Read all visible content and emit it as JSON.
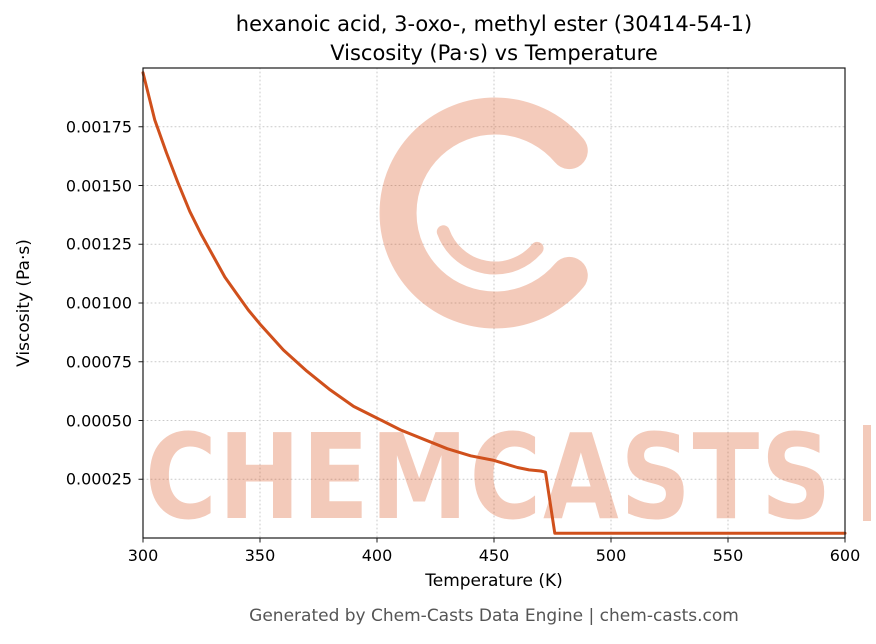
{
  "header": {
    "title_line1": "hexanoic acid, 3-oxo-, methyl ester (30414-54-1)",
    "title_line2": "Viscosity (Pa·s) vs Temperature"
  },
  "axes": {
    "xlabel": "Temperature (K)",
    "ylabel": "Viscosity (Pa·s)"
  },
  "footer": {
    "text": "Generated by Chem-Casts Data Engine | chem-casts.com"
  },
  "watermark": {
    "text": "CHEMCASTS",
    "color": "#d9531e",
    "opacity": 0.3
  },
  "chart_data": {
    "type": "line",
    "title": "hexanoic acid, 3-oxo-, methyl ester (30414-54-1) — Viscosity (Pa·s) vs Temperature",
    "xlabel": "Temperature (K)",
    "ylabel": "Viscosity (Pa·s)",
    "xlim": [
      300,
      600
    ],
    "ylim": [
      0,
      0.002
    ],
    "xticks": [
      300,
      350,
      400,
      450,
      500,
      550,
      600
    ],
    "yticks": [
      0.00025,
      0.0005,
      0.00075,
      0.001,
      0.00125,
      0.0015,
      0.00175
    ],
    "ytick_labels": [
      "0.00025",
      "0.00050",
      "0.00075",
      "0.00100",
      "0.00125",
      "0.00150",
      "0.00175"
    ],
    "grid": true,
    "grid_style": "dotted",
    "legend": "none",
    "line_color": "#d0501c",
    "line_width": 3,
    "series": [
      {
        "name": "viscosity",
        "x": [
          300,
          305,
          310,
          315,
          320,
          325,
          330,
          335,
          340,
          345,
          350,
          360,
          370,
          380,
          390,
          400,
          410,
          420,
          430,
          440,
          450,
          460,
          465,
          470,
          472,
          476,
          480,
          500,
          520,
          550,
          600
        ],
        "y": [
          0.00198,
          0.00178,
          0.00164,
          0.00151,
          0.00139,
          0.00129,
          0.0012,
          0.00111,
          0.00104,
          0.00097,
          0.00091,
          0.0008,
          0.00071,
          0.00063,
          0.00056,
          0.00051,
          0.00046,
          0.00042,
          0.00038,
          0.00035,
          0.00033,
          0.0003,
          0.00029,
          0.000285,
          0.00028,
          2e-05,
          2e-05,
          2e-05,
          2e-05,
          2e-05,
          2e-05
        ]
      }
    ]
  }
}
